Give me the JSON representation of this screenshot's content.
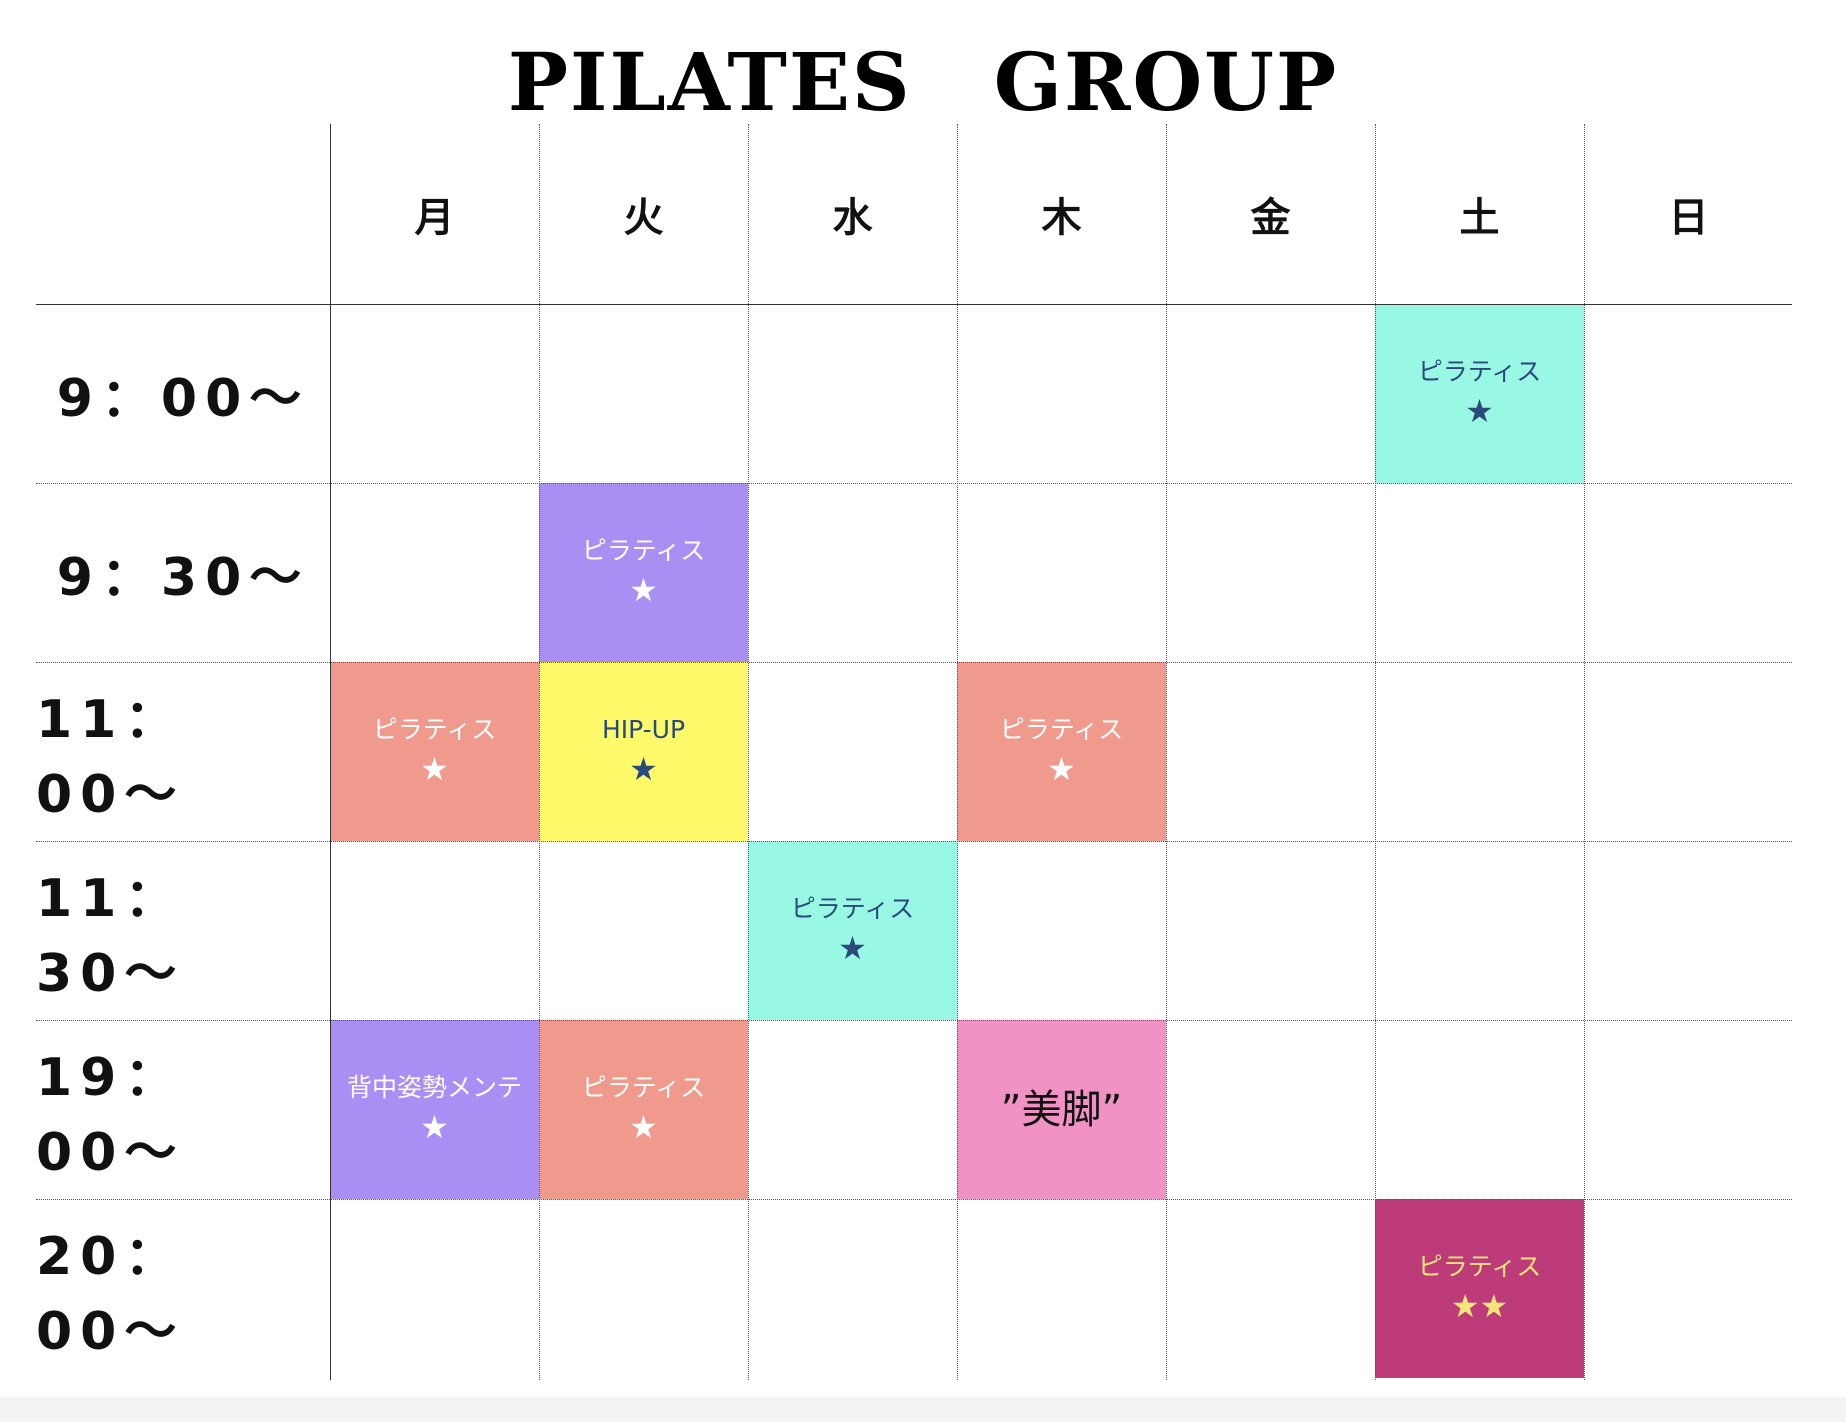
{
  "title": "PILATES　GROUP",
  "days": [
    "月",
    "火",
    "水",
    "木",
    "金",
    "土",
    "日"
  ],
  "times": [
    "9：00〜",
    "9：30〜",
    "11：00〜",
    "11：30〜",
    "19：00〜",
    "20：00〜"
  ],
  "classes": [
    {
      "day": "土",
      "time": "9：00〜",
      "name": "ピラティス",
      "stars": "★",
      "bg": "#98F8E4",
      "text_color": "#2B4A7C"
    },
    {
      "day": "火",
      "time": "9：30〜",
      "name": "ピラティス",
      "stars": "★",
      "bg": "#A98EF4",
      "text_color": "#FFFFFF"
    },
    {
      "day": "月",
      "time": "11：00〜",
      "name": "ピラティス",
      "stars": "★",
      "bg": "#F09A8E",
      "text_color": "#FFFFFF"
    },
    {
      "day": "火",
      "time": "11：00〜",
      "name": "HIP-UP",
      "stars": "★",
      "bg": "#FEFA6A",
      "text_color": "#2B4A7C"
    },
    {
      "day": "木",
      "time": "11：00〜",
      "name": "ピラティス",
      "stars": "★",
      "bg": "#F09A8E",
      "text_color": "#FFFFFF"
    },
    {
      "day": "水",
      "time": "11：30〜",
      "name": "ピラティス",
      "stars": "★",
      "bg": "#98F8E4",
      "text_color": "#2B4A7C"
    },
    {
      "day": "月",
      "time": "19：00〜",
      "name": "背中姿勢メンテ",
      "stars": "★",
      "bg": "#A98EF4",
      "text_color": "#FFFFFF"
    },
    {
      "day": "火",
      "time": "19：00〜",
      "name": "ピラティス",
      "stars": "★",
      "bg": "#F09A8E",
      "text_color": "#FFFFFF"
    },
    {
      "day": "木",
      "time": "19：00〜",
      "name": "”美脚”",
      "stars": "",
      "bg": "#F093C4",
      "text_color": "#111111"
    },
    {
      "day": "土",
      "time": "20：00〜",
      "name": "ピラティス",
      "stars": "★★",
      "bg": "#BC3B78",
      "text_color": "#F6E67A"
    }
  ]
}
